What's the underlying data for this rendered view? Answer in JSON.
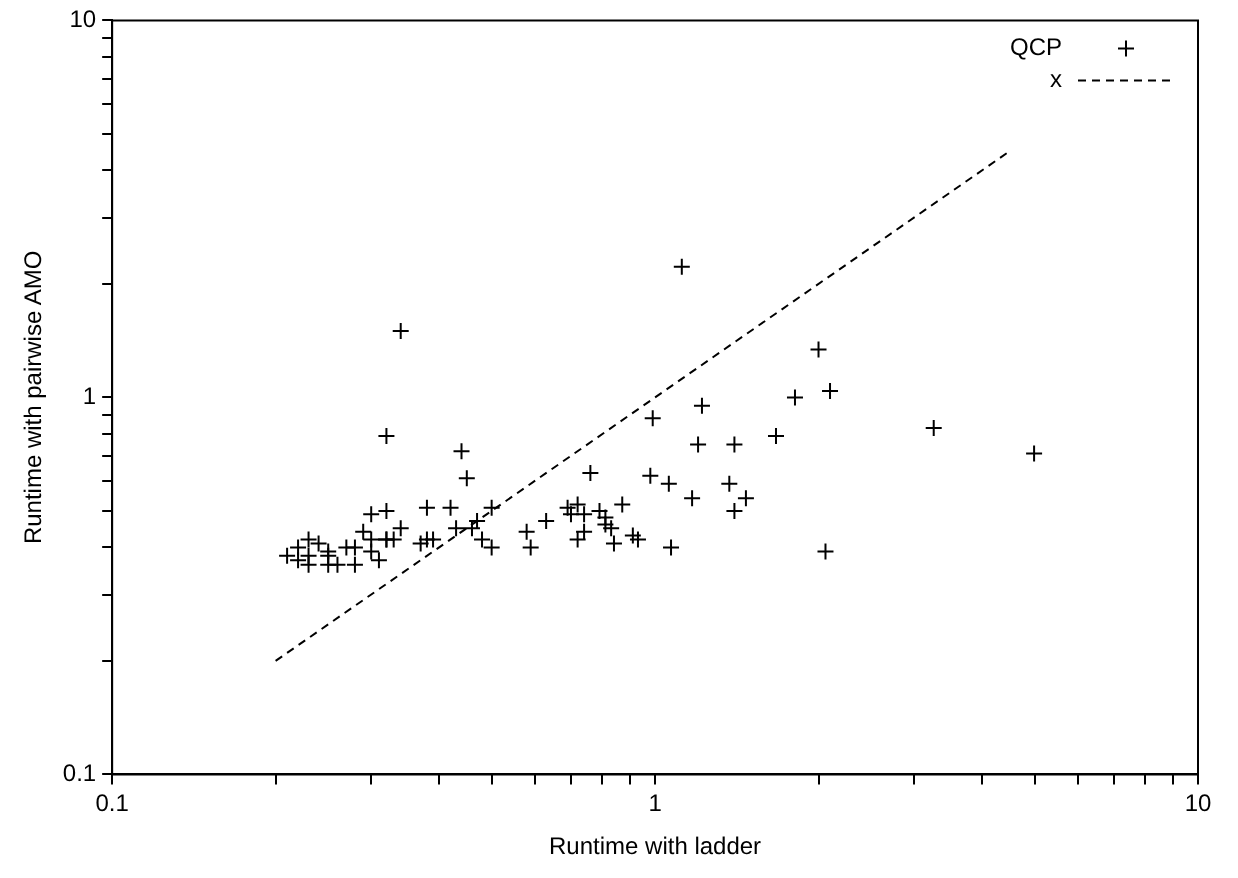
{
  "chart_data": {
    "type": "scatter",
    "xlabel": "Runtime with ladder",
    "ylabel": "Runtime with pairwise AMO",
    "log": "xy",
    "grid": false,
    "legend": "top right",
    "xlim": [
      0.1,
      10
    ],
    "ylim": [
      0.1,
      10
    ],
    "xticks": [
      0.1,
      {
        "value": 0.2,
        "label": null
      },
      {
        "value": 0.3,
        "label": null
      },
      {
        "value": 0.4,
        "label": null
      },
      {
        "value": 0.5,
        "label": null
      },
      {
        "value": 0.6,
        "label": null
      },
      {
        "value": 0.7,
        "label": null
      },
      {
        "value": 0.8,
        "label": null
      },
      {
        "value": 0.9,
        "label": null
      },
      1,
      {
        "value": 2,
        "label": null
      },
      {
        "value": 3,
        "label": null
      },
      {
        "value": 4,
        "label": null
      },
      {
        "value": 5,
        "label": null
      },
      {
        "value": 6,
        "label": null
      },
      {
        "value": 7,
        "label": null
      },
      {
        "value": 8,
        "label": null
      },
      {
        "value": 9,
        "label": null
      },
      10
    ],
    "yticks": [
      0.1,
      {
        "value": 0.2,
        "label": null
      },
      {
        "value": 0.3,
        "label": null
      },
      {
        "value": 0.4,
        "label": null
      },
      {
        "value": 0.5,
        "label": null
      },
      {
        "value": 0.6,
        "label": null
      },
      {
        "value": 0.7,
        "label": null
      },
      {
        "value": 0.8,
        "label": null
      },
      {
        "value": 0.9,
        "label": null
      },
      1,
      {
        "value": 2,
        "label": null
      },
      {
        "value": 3,
        "label": null
      },
      {
        "value": 4,
        "label": null
      },
      {
        "value": 5,
        "label": null
      },
      {
        "value": 6,
        "label": null
      },
      {
        "value": 7,
        "label": null
      },
      {
        "value": 8,
        "label": null
      },
      {
        "value": 9,
        "label": null
      },
      10
    ],
    "series": [
      {
        "name": "QCP",
        "marker": "cross",
        "color": "#000000",
        "x": [
          0.32,
          0.34,
          0.44,
          0.45,
          0.3,
          0.32,
          0.38,
          0.42,
          0.5,
          0.47,
          0.34,
          0.29,
          0.32,
          0.3,
          0.33,
          0.38,
          0.37,
          0.39,
          0.43,
          0.46,
          0.48,
          0.5,
          0.58,
          0.59,
          0.63,
          0.23,
          0.21,
          0.22,
          0.23,
          0.24,
          0.25,
          0.25,
          0.27,
          0.28,
          0.22,
          0.23,
          0.25,
          0.26,
          0.28,
          0.3,
          0.31,
          0.32,
          1.2,
          1.4,
          1.67,
          0.76,
          0.98,
          1.06,
          1.37,
          1.17,
          1.47,
          1.4,
          0.69,
          0.72,
          0.7,
          0.74,
          0.79,
          0.81,
          0.87,
          0.81,
          0.83,
          0.74,
          0.72,
          0.84,
          0.91,
          0.93,
          1.07,
          2.06,
          1.12,
          2.0,
          2.1,
          1.81,
          1.22,
          0.99,
          3.26,
          4.99
        ],
        "values": [
          0.79,
          1.5,
          0.72,
          0.61,
          0.49,
          0.5,
          0.51,
          0.51,
          0.51,
          0.47,
          0.45,
          0.44,
          0.42,
          0.42,
          0.42,
          0.42,
          0.41,
          0.42,
          0.45,
          0.45,
          0.42,
          0.4,
          0.44,
          0.4,
          0.47,
          0.42,
          0.38,
          0.4,
          0.38,
          0.41,
          0.39,
          0.38,
          0.4,
          0.4,
          0.37,
          0.36,
          0.36,
          0.36,
          0.36,
          0.39,
          0.37,
          0.42,
          0.75,
          0.75,
          0.79,
          0.63,
          0.62,
          0.59,
          0.59,
          0.54,
          0.54,
          0.5,
          0.51,
          0.52,
          0.49,
          0.49,
          0.5,
          0.48,
          0.52,
          0.46,
          0.45,
          0.44,
          0.42,
          0.41,
          0.43,
          0.42,
          0.4,
          0.39,
          2.22,
          1.34,
          1.04,
          1.0,
          0.95,
          0.88,
          0.83,
          0.71
        ]
      },
      {
        "name": "x",
        "type": "line",
        "line_style": "dashed",
        "marker": "none",
        "color": "#000000",
        "x": [
          0.2,
          4.5
        ],
        "values": [
          0.2,
          4.5
        ]
      }
    ]
  }
}
